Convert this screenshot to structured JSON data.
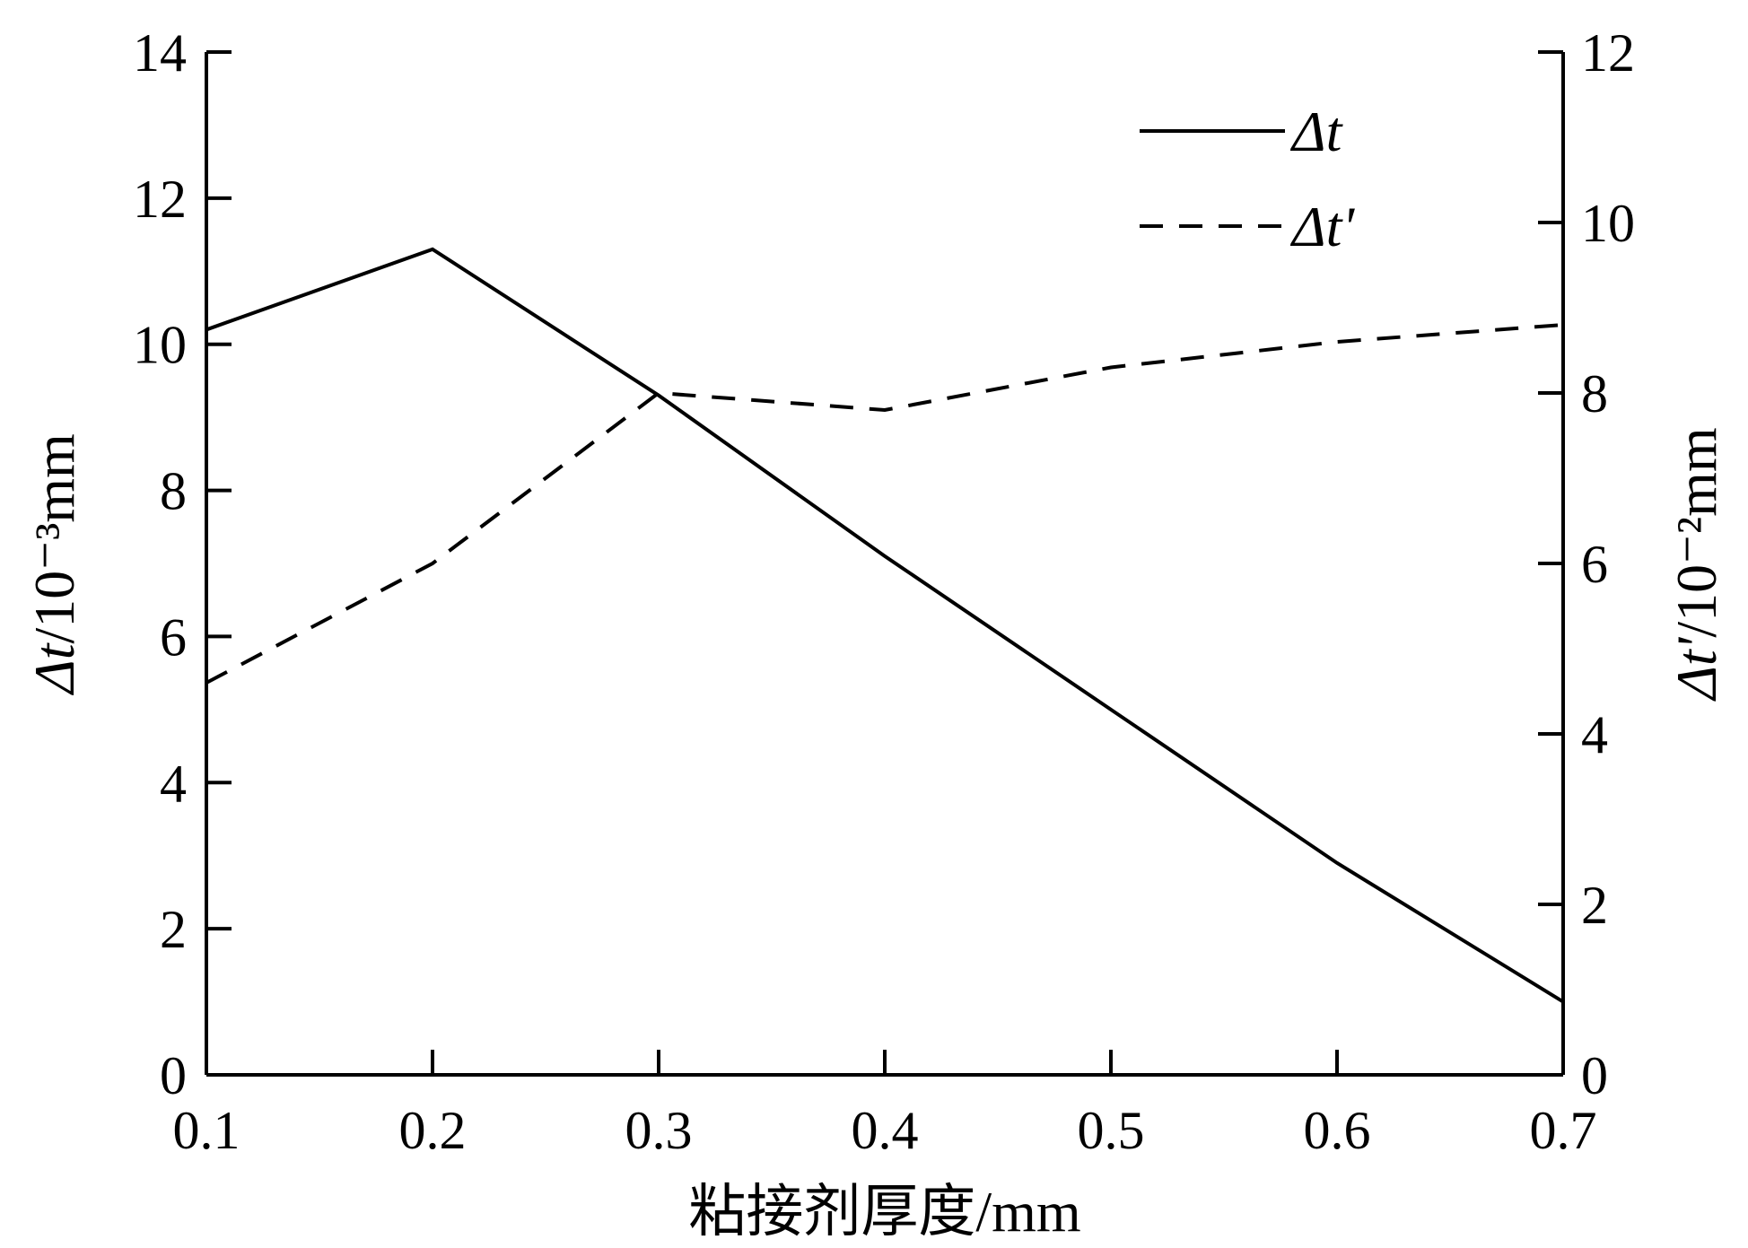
{
  "chart_data": {
    "type": "line",
    "x": [
      0.1,
      0.2,
      0.3,
      0.4,
      0.5,
      0.6,
      0.7
    ],
    "x_ticks": [
      "0.1",
      "0.2",
      "0.3",
      "0.4",
      "0.5",
      "0.6",
      "0.7"
    ],
    "xlim": [
      0.1,
      0.7
    ],
    "xlabel": "粘接剂厚度/mm",
    "y_left": {
      "label_symbol": "Δt",
      "label_unit": "/10⁻³mm",
      "ylim": [
        0,
        14
      ],
      "ticks": [
        "0",
        "2",
        "4",
        "6",
        "8",
        "10",
        "12",
        "14"
      ]
    },
    "y_right": {
      "label_symbol": "Δt'",
      "label_unit": "/10⁻²mm",
      "ylim": [
        0,
        12
      ],
      "ticks": [
        "0",
        "2",
        "4",
        "6",
        "8",
        "10",
        "12"
      ]
    },
    "series": [
      {
        "name": "Δt",
        "axis": "left",
        "style": "solid",
        "color": "#000000",
        "values": [
          10.2,
          11.3,
          9.3,
          7.1,
          5.0,
          2.9,
          1.0
        ]
      },
      {
        "name": "Δt'",
        "axis": "right",
        "style": "dashed",
        "color": "#000000",
        "values": [
          4.6,
          6.0,
          8.0,
          7.8,
          8.3,
          8.6,
          8.8
        ]
      }
    ],
    "legend_position": "top-right",
    "grid": false
  }
}
